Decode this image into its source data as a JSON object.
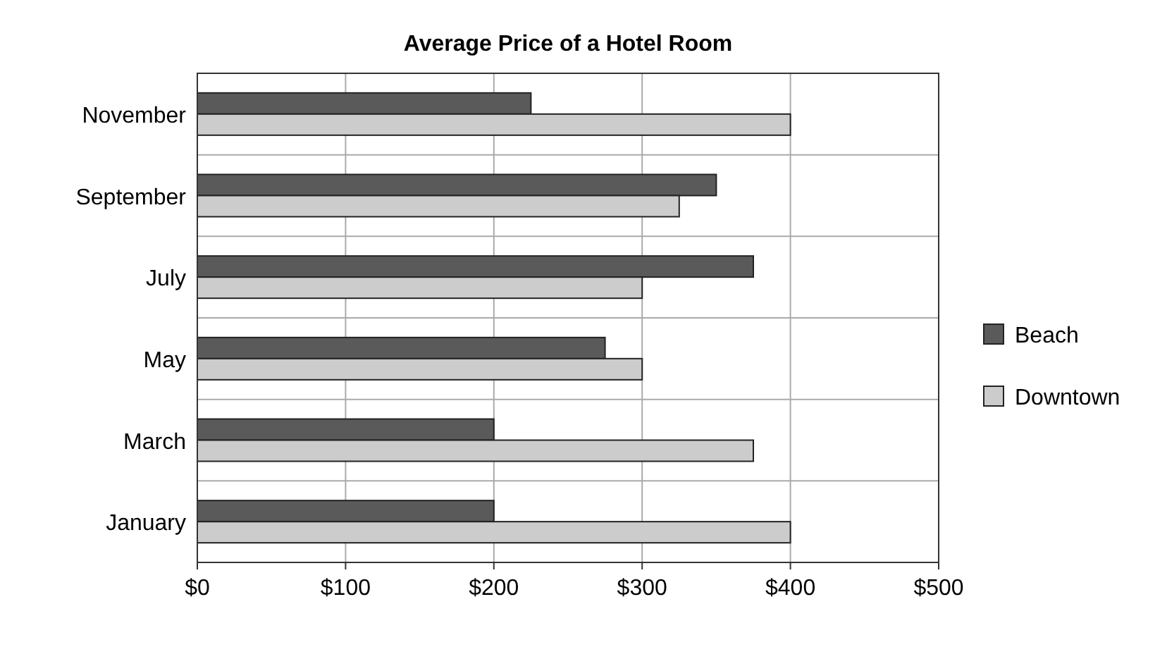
{
  "chart_data": {
    "type": "bar",
    "orientation": "horizontal",
    "title": "Average Price of a Hotel Room",
    "categories": [
      "November",
      "September",
      "July",
      "May",
      "March",
      "January"
    ],
    "series": [
      {
        "name": "Beach",
        "color": "#5a5a5a",
        "values": [
          225,
          350,
          375,
          275,
          200,
          200
        ]
      },
      {
        "name": "Downtown",
        "color": "#cccccc",
        "values": [
          400,
          325,
          300,
          300,
          375,
          400
        ]
      }
    ],
    "xlim": [
      0,
      500
    ],
    "xticks": [
      {
        "value": 0,
        "label": "$0"
      },
      {
        "value": 100,
        "label": "$100"
      },
      {
        "value": 200,
        "label": "$200"
      },
      {
        "value": 300,
        "label": "$300"
      },
      {
        "value": 400,
        "label": "$400"
      },
      {
        "value": 500,
        "label": "$500"
      }
    ],
    "grid": true,
    "legend": "right"
  }
}
